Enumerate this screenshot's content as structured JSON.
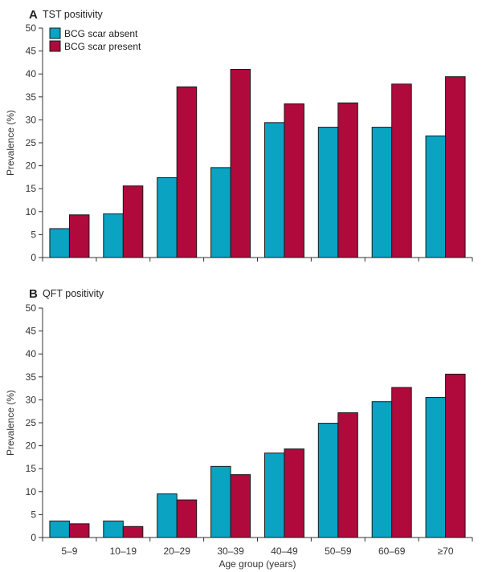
{
  "chart_data": [
    {
      "type": "bar",
      "panel": "A",
      "title": "TST positivity",
      "ylabel": "Prevalence (%)",
      "xlabel": "",
      "ylim": [
        0,
        50
      ],
      "yticks": [
        0,
        5,
        10,
        15,
        20,
        25,
        30,
        35,
        40,
        45,
        50
      ],
      "categories": [
        "5–9",
        "10–19",
        "20–29",
        "30–39",
        "40–49",
        "50–59",
        "60–69",
        "≥70"
      ],
      "legend": "top-left",
      "series": [
        {
          "name": "BCG scar absent",
          "color": "#0aa3c2",
          "values": [
            6.3,
            9.5,
            17.4,
            19.6,
            29.4,
            28.4,
            28.4,
            26.5
          ]
        },
        {
          "name": "BCG scar present",
          "color": "#b0093c",
          "values": [
            9.3,
            15.6,
            37.2,
            41.0,
            33.5,
            33.7,
            37.8,
            39.4
          ]
        }
      ]
    },
    {
      "type": "bar",
      "panel": "B",
      "title": "QFT positivity",
      "ylabel": "Prevalence (%)",
      "xlabel": "Age group (years)",
      "ylim": [
        0,
        50
      ],
      "yticks": [
        0,
        5,
        10,
        15,
        20,
        25,
        30,
        35,
        40,
        45,
        50
      ],
      "categories": [
        "5–9",
        "10–19",
        "20–29",
        "30–39",
        "40–49",
        "50–59",
        "60–69",
        "≥70"
      ],
      "series": [
        {
          "name": "BCG scar absent",
          "color": "#0aa3c2",
          "values": [
            3.6,
            3.6,
            9.5,
            15.5,
            18.4,
            24.9,
            29.6,
            30.5
          ]
        },
        {
          "name": "BCG scar present",
          "color": "#b0093c",
          "values": [
            3.0,
            2.4,
            8.2,
            13.7,
            19.3,
            27.2,
            32.7,
            35.6
          ]
        }
      ]
    }
  ]
}
